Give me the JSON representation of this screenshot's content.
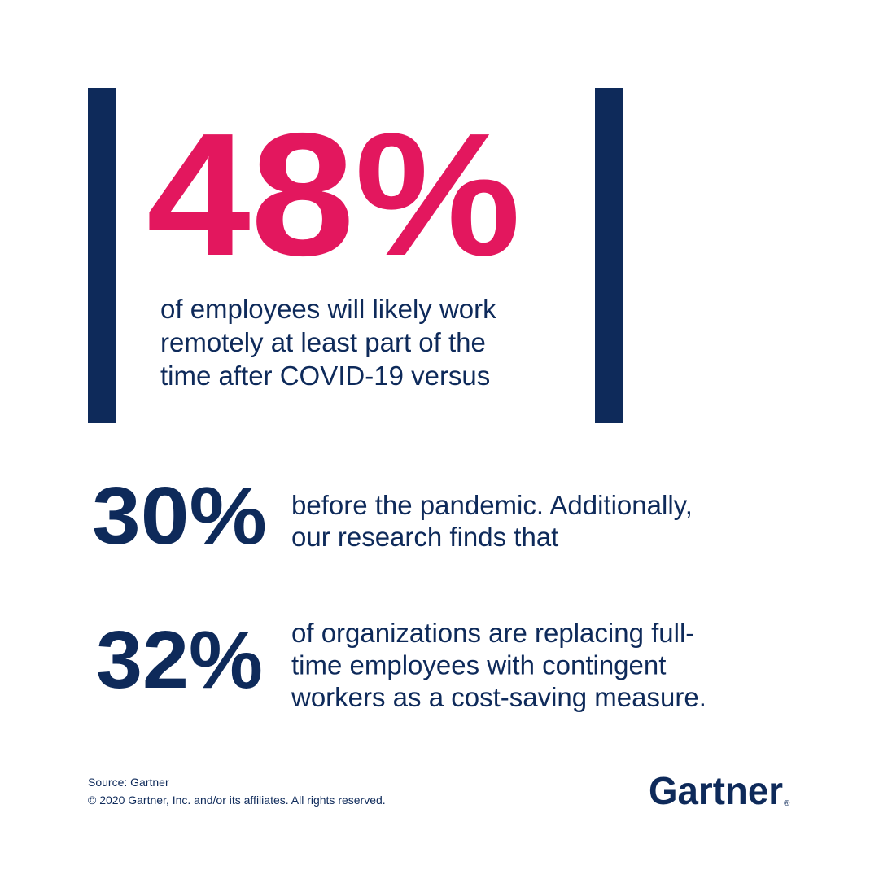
{
  "headline": {
    "value": "48%",
    "lines": [
      "of employees will likely work",
      "remotely at least part of the",
      "time after COVID-19 versus"
    ]
  },
  "stats": [
    {
      "value": "30%",
      "lines": [
        "before the pandemic. Additionally,",
        "our research finds that"
      ]
    },
    {
      "value": "32%",
      "lines": [
        "of organizations are replacing full-",
        "time employees with contingent",
        "workers as a cost-saving measure."
      ]
    }
  ],
  "footer": {
    "source": "Source: Gartner",
    "copyright": "© 2020 Gartner, Inc. and/or its affiliates. All rights reserved."
  },
  "logo": {
    "name": "Gartner",
    "mark": "®"
  }
}
